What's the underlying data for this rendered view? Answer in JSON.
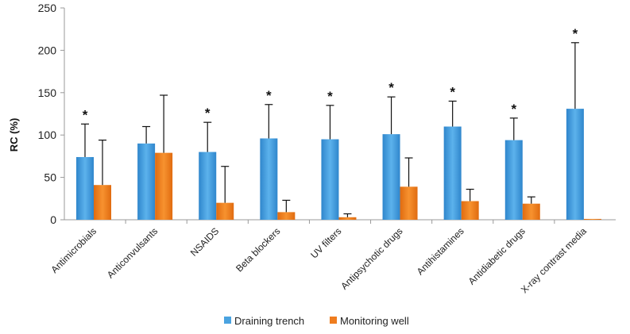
{
  "chart_data": {
    "type": "bar",
    "title": "",
    "xlabel": "",
    "ylabel": "RC (%)",
    "ylim": [
      0,
      250
    ],
    "yticks": [
      "0",
      "50",
      "100",
      "150",
      "200",
      "250"
    ],
    "grid": false,
    "legend_position": "bottom",
    "categories": [
      "Antimicrobials",
      "Anticonvulsants",
      "NSAIDS",
      "Beta blockers",
      "UV filters",
      "Antipsychotic drugs",
      "Antihistamines",
      "Antidiabetic drugs",
      "X-ray contrast media"
    ],
    "series": [
      {
        "name": "Draining trench",
        "color": "#4aa3e0",
        "values": [
          74,
          90,
          80,
          96,
          95,
          101,
          110,
          94,
          131
        ],
        "error_upper": [
          113,
          110,
          115,
          136,
          135,
          145,
          140,
          120,
          209
        ]
      },
      {
        "name": "Monitoring well",
        "color": "#ef7d1f",
        "values": [
          41,
          79,
          20,
          9,
          3,
          39,
          22,
          19,
          1
        ],
        "error_upper": [
          94,
          147,
          63,
          23,
          7,
          73,
          36,
          27,
          1
        ]
      }
    ],
    "significance_marker": "*",
    "significant": [
      true,
      false,
      true,
      true,
      true,
      true,
      true,
      true,
      true
    ]
  }
}
